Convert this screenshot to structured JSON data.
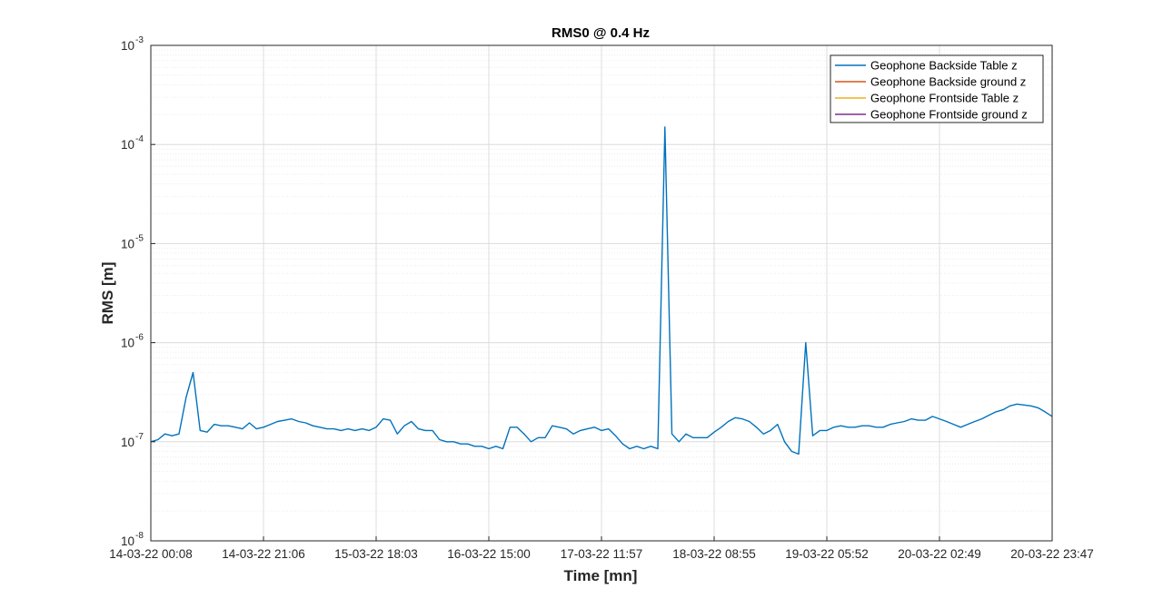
{
  "chart_data": {
    "type": "line",
    "title": "RMS0 @ 0.4 Hz",
    "xlabel": "Time [mn]",
    "ylabel": "RMS [m]",
    "yscale": "log",
    "ylim": [
      1e-08,
      0.001
    ],
    "y_ticks": [
      {
        "base": "10",
        "exp": "-8",
        "value": 1e-08
      },
      {
        "base": "10",
        "exp": "-7",
        "value": 1e-07
      },
      {
        "base": "10",
        "exp": "-6",
        "value": 1e-06
      },
      {
        "base": "10",
        "exp": "-5",
        "value": 1e-05
      },
      {
        "base": "10",
        "exp": "-4",
        "value": 0.0001
      },
      {
        "base": "10",
        "exp": "-3",
        "value": 0.001
      }
    ],
    "x_ticks": [
      "14-03-22 00:08",
      "14-03-22 21:06",
      "15-03-22 18:03",
      "16-03-22 15:00",
      "17-03-22 11:57",
      "18-03-22 08:55",
      "19-03-22 05:52",
      "20-03-22 02:49",
      "20-03-22 23:47"
    ],
    "grid": true,
    "legend_position": "top-right",
    "series": [
      {
        "name": "Geophone Backside Table z",
        "color": "#0072BD",
        "x": [
          0,
          0.0625,
          0.125,
          0.1875,
          0.25,
          0.3125,
          0.375,
          0.4375,
          0.5,
          0.5625,
          0.625,
          0.6875,
          0.75,
          0.8125,
          0.875,
          0.9375,
          1,
          1.0625,
          1.125,
          1.1875,
          1.25,
          1.3125,
          1.375,
          1.4375,
          1.5,
          1.5625,
          1.625,
          1.6875,
          1.75,
          1.8125,
          1.875,
          1.9375,
          2,
          2.0625,
          2.125,
          2.1875,
          2.25,
          2.3125,
          2.375,
          2.4375,
          2.5,
          2.5625,
          2.625,
          2.6875,
          2.75,
          2.8125,
          2.875,
          2.9375,
          3,
          3.0625,
          3.125,
          3.1875,
          3.25,
          3.3125,
          3.375,
          3.4375,
          3.5,
          3.5625,
          3.625,
          3.6875,
          3.75,
          3.8125,
          3.875,
          3.9375,
          4,
          4.0625,
          4.125,
          4.1875,
          4.25,
          4.3125,
          4.375,
          4.4375,
          4.5,
          4.5625,
          4.625,
          4.6875,
          4.75,
          4.8125,
          4.875,
          4.9375,
          5,
          5.0625,
          5.125,
          5.1875,
          5.25,
          5.3125,
          5.375,
          5.4375,
          5.5,
          5.5625,
          5.625,
          5.6875,
          5.75,
          5.8125,
          5.875,
          5.9375,
          6,
          6.0625,
          6.125,
          6.1875,
          6.25,
          6.3125,
          6.375,
          6.4375,
          6.5,
          6.5625,
          6.625,
          6.6875,
          6.75,
          6.8125,
          6.875,
          6.9375,
          7,
          7.0625,
          7.125,
          7.1875,
          7.25,
          7.3125,
          7.375,
          7.4375,
          7.5,
          7.5625,
          7.625,
          7.6875,
          7.75,
          7.8125,
          7.875,
          7.9375,
          8
        ],
        "y": [
          1e-07,
          1.05e-07,
          1.2e-07,
          1.15e-07,
          1.2e-07,
          2.8e-07,
          5e-07,
          1.3e-07,
          1.25e-07,
          1.5e-07,
          1.45e-07,
          1.45e-07,
          1.4e-07,
          1.35e-07,
          1.55e-07,
          1.35e-07,
          1.4e-07,
          1.5e-07,
          1.6e-07,
          1.65e-07,
          1.7e-07,
          1.6e-07,
          1.55e-07,
          1.45e-07,
          1.4e-07,
          1.35e-07,
          1.35e-07,
          1.3e-07,
          1.35e-07,
          1.3e-07,
          1.35e-07,
          1.3e-07,
          1.4e-07,
          1.7e-07,
          1.65e-07,
          1.2e-07,
          1.45e-07,
          1.6e-07,
          1.35e-07,
          1.3e-07,
          1.3e-07,
          1.05e-07,
          1e-07,
          1e-07,
          9.5e-08,
          9.5e-08,
          9e-08,
          9e-08,
          8.5e-08,
          9e-08,
          8.5e-08,
          1.4e-07,
          1.4e-07,
          1.2e-07,
          1e-07,
          1.1e-07,
          1.1e-07,
          1.45e-07,
          1.4e-07,
          1.35e-07,
          1.2e-07,
          1.3e-07,
          1.35e-07,
          1.4e-07,
          1.3e-07,
          1.35e-07,
          1.15e-07,
          9.5e-08,
          8.5e-08,
          9e-08,
          8.5e-08,
          9e-08,
          8.5e-08,
          0.00015,
          1.2e-07,
          1e-07,
          1.2e-07,
          1.1e-07,
          1.1e-07,
          1.1e-07,
          1.25e-07,
          1.4e-07,
          1.6e-07,
          1.75e-07,
          1.7e-07,
          1.6e-07,
          1.4e-07,
          1.2e-07,
          1.3e-07,
          1.5e-07,
          1e-07,
          8e-08,
          7.5e-08,
          1e-06,
          1.15e-07,
          1.3e-07,
          1.3e-07,
          1.4e-07,
          1.45e-07,
          1.4e-07,
          1.4e-07,
          1.45e-07,
          1.45e-07,
          1.4e-07,
          1.4e-07,
          1.5e-07,
          1.55e-07,
          1.6e-07,
          1.7e-07,
          1.65e-07,
          1.65e-07,
          1.8e-07,
          1.7e-07,
          1.6e-07,
          1.5e-07,
          1.4e-07,
          1.5e-07,
          1.6e-07,
          1.7e-07,
          1.85e-07,
          2e-07,
          2.1e-07,
          2.3e-07,
          2.4e-07,
          2.35e-07,
          2.3e-07,
          2.2e-07,
          2e-07,
          1.8e-07
        ]
      }
    ]
  },
  "legend": {
    "items": [
      {
        "name": "Geophone Backside Table z",
        "color": "#0072BD"
      },
      {
        "name": "Geophone Backside ground z",
        "color": "#D95319"
      },
      {
        "name": "Geophone Frontside Table z",
        "color": "#EDB120"
      },
      {
        "name": "Geophone Frontside ground z",
        "color": "#7E2F8E"
      }
    ]
  }
}
